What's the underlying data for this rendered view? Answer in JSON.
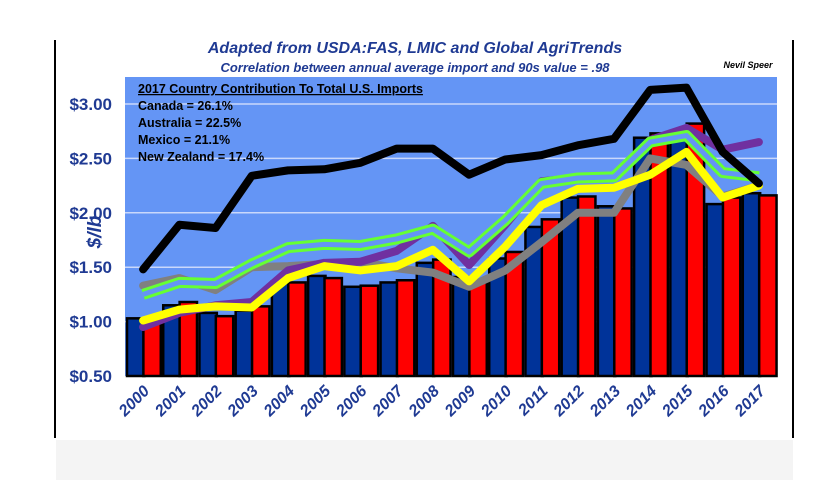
{
  "chart_data": {
    "type": "bar",
    "title": "Adapted from USDA:FAS, LMIC and Global AgriTrends",
    "subtitle": "Correlation between annual average import and 90s value = .98",
    "author": "Nevil Speer",
    "ylabel": "$/lb",
    "xlabel": "",
    "ylim": [
      0.5,
      3.25
    ],
    "yticks": [
      0.5,
      1.0,
      1.5,
      2.0,
      2.5,
      3.0
    ],
    "ytick_labels": [
      "$0.50",
      "$1.00",
      "$1.50",
      "$2.00",
      "$2.50",
      "$3.00"
    ],
    "grid": true,
    "categories": [
      "2000",
      "2001",
      "2002",
      "2003",
      "2004",
      "2005",
      "2006",
      "2007",
      "2008",
      "2009",
      "2010",
      "2011",
      "2012",
      "2013",
      "2014",
      "2015",
      "2016",
      "2017"
    ],
    "annotation": {
      "heading": "2017 Country Contribution To Total U.S. Imports",
      "lines": [
        "Canada = 26.1%",
        "Australia = 22.5%",
        "Mexico = 21.1%",
        "New Zealand = 17.4%"
      ]
    },
    "bar_series": [
      {
        "color": "#003399",
        "values": [
          1.03,
          1.15,
          1.08,
          1.1,
          1.37,
          1.42,
          1.32,
          1.36,
          1.54,
          1.41,
          1.58,
          1.87,
          2.14,
          2.06,
          2.69,
          2.72,
          2.08,
          2.18
        ]
      },
      {
        "color": "#ff0000",
        "values": [
          0.98,
          1.18,
          1.05,
          1.14,
          1.36,
          1.4,
          1.33,
          1.38,
          1.57,
          1.38,
          1.64,
          1.94,
          2.15,
          2.04,
          2.73,
          2.82,
          2.14,
          2.16
        ]
      }
    ],
    "line_series": [
      {
        "color": "#808080",
        "values": [
          1.33,
          1.4,
          1.29,
          1.5,
          1.51,
          1.53,
          1.55,
          1.49,
          1.45,
          1.32,
          1.47,
          1.73,
          2.0,
          2.0,
          2.5,
          2.44,
          2.15,
          2.25
        ]
      },
      {
        "color": "#7030a0",
        "values": [
          0.95,
          1.08,
          1.15,
          1.18,
          1.47,
          1.54,
          1.55,
          1.65,
          1.88,
          1.52,
          1.89,
          2.29,
          2.32,
          2.34,
          2.67,
          2.78,
          2.58,
          2.65
        ]
      },
      {
        "color": "#66ff33",
        "outline": true,
        "values": [
          1.25,
          1.36,
          1.35,
          1.53,
          1.68,
          1.71,
          1.7,
          1.76,
          1.85,
          1.64,
          1.93,
          2.27,
          2.32,
          2.33,
          2.65,
          2.71,
          2.37,
          2.33
        ]
      },
      {
        "color": "#ffff00",
        "values": [
          1.01,
          1.11,
          1.14,
          1.13,
          1.4,
          1.51,
          1.47,
          1.51,
          1.66,
          1.37,
          1.69,
          2.07,
          2.22,
          2.23,
          2.35,
          2.56,
          2.14,
          2.25
        ]
      },
      {
        "color": "#000000",
        "values": [
          1.48,
          1.89,
          1.86,
          2.34,
          2.39,
          2.4,
          2.46,
          2.59,
          2.59,
          2.35,
          2.49,
          2.53,
          2.62,
          2.68,
          3.13,
          3.15,
          2.56,
          2.27
        ]
      }
    ],
    "colors": {
      "plot_bg": "#6495f5",
      "text": "#1f3a93"
    }
  }
}
